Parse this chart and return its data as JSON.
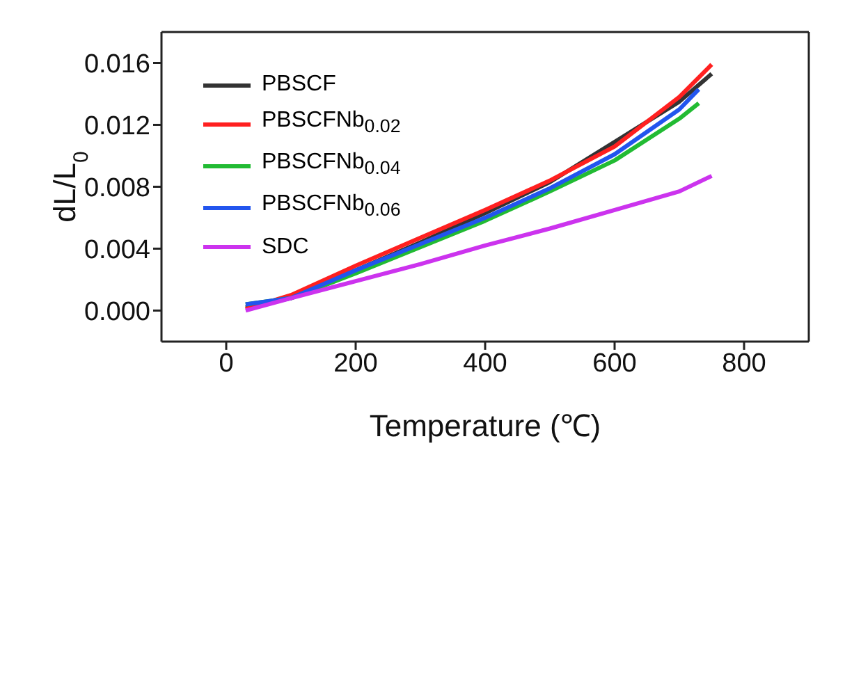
{
  "chart_data": {
    "type": "line",
    "xlabel": "Temperature (℃)",
    "ylabel": "dL/L$_{0}$",
    "xlim": [
      -100,
      900
    ],
    "ylim": [
      -0.002,
      0.018
    ],
    "xticks": [
      0,
      200,
      400,
      600,
      800
    ],
    "yticks": [
      {
        "value": 0,
        "label": "0.000"
      },
      {
        "value": 0.004,
        "label": "0.004"
      },
      {
        "value": 0.008,
        "label": "0.008"
      },
      {
        "value": 0.012,
        "label": "0.012"
      },
      {
        "value": 0.016,
        "label": "0.016"
      }
    ],
    "legend": "top left",
    "marker": "none",
    "line_style": "solid",
    "series": [
      {
        "name": "PBSCF",
        "color": "#333333",
        "x": [
          30,
          100,
          200,
          300,
          400,
          500,
          600,
          700,
          750
        ],
        "values": [
          0.0002,
          0.0008,
          0.0026,
          0.0044,
          0.0063,
          0.0083,
          0.0109,
          0.0135,
          0.0153
        ]
      },
      {
        "name": "PBSCFNb$_{0.02}$",
        "color": "#ff2020",
        "x": [
          30,
          100,
          200,
          300,
          400,
          500,
          600,
          700,
          750
        ],
        "values": [
          0.0001,
          0.001,
          0.0029,
          0.0047,
          0.0065,
          0.0084,
          0.0106,
          0.0138,
          0.0159
        ]
      },
      {
        "name": "PBSCFNb$_{0.04}$",
        "color": "#22bb33",
        "x": [
          30,
          100,
          200,
          300,
          400,
          500,
          600,
          700,
          730
        ],
        "values": [
          0.0004,
          0.0008,
          0.0024,
          0.0041,
          0.0058,
          0.0077,
          0.0097,
          0.0124,
          0.0134
        ]
      },
      {
        "name": "PBSCFNb$_{0.06}$",
        "color": "#2255ee",
        "x": [
          30,
          100,
          200,
          300,
          400,
          500,
          600,
          700,
          730
        ],
        "values": [
          0.0004,
          0.0008,
          0.0026,
          0.0043,
          0.006,
          0.0079,
          0.0101,
          0.013,
          0.0143
        ]
      },
      {
        "name": "SDC",
        "color": "#cc33ee",
        "x": [
          30,
          100,
          200,
          300,
          400,
          500,
          600,
          700,
          750
        ],
        "values": [
          0,
          0.0008,
          0.0019,
          0.003,
          0.0042,
          0.0053,
          0.0065,
          0.0077,
          0.0087
        ]
      }
    ]
  }
}
